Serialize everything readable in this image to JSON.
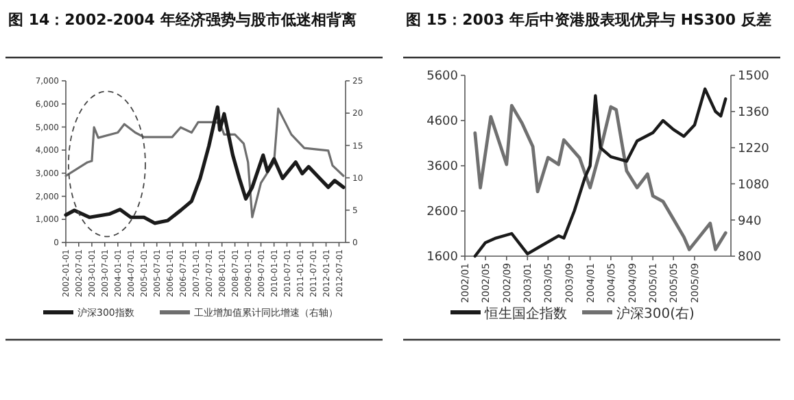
{
  "chart_data": [
    {
      "type": "line",
      "title": "图 14：2002-2004 年经济强势与股市低迷相背离",
      "legend": "bottom",
      "xlim": [
        "2002-01-01",
        "2012-10-01"
      ],
      "xticks": [
        "2002-01-01",
        "2002-07-01",
        "2003-01-01",
        "2003-07-01",
        "2004-01-01",
        "2004-07-01",
        "2005-01-01",
        "2005-07-01",
        "2006-01-01",
        "2006-07-01",
        "2007-01-01",
        "2007-07-01",
        "2008-01-01",
        "2008-07-01",
        "2009-01-01",
        "2009-07-01",
        "2010-01-01",
        "2010-07-01",
        "2011-01-01",
        "2011-07-01",
        "2012-01-01",
        "2012-07-01"
      ],
      "ylim": [
        0,
        7000
      ],
      "yticks": [
        0,
        {
          "value": 1000,
          "label": "1,000"
        },
        {
          "value": 2000,
          "label": "2,000"
        },
        {
          "value": 3000,
          "label": "3,000"
        },
        {
          "value": 4000,
          "label": "4,000"
        },
        {
          "value": 5000,
          "label": "5,000"
        },
        {
          "value": 6000,
          "label": "6,000"
        },
        {
          "value": 7000,
          "label": "7,000"
        }
      ],
      "y2lim": [
        0,
        25
      ],
      "y2ticks": [
        0,
        5,
        10,
        15,
        20,
        25
      ],
      "series": [
        {
          "name": "沪深300指数",
          "color": "#1a1a1a",
          "x": [
            "2002-01",
            "2002-05",
            "2002-12",
            "2003-09",
            "2004-02",
            "2004-07",
            "2005-01",
            "2005-06",
            "2005-12",
            "2006-06",
            "2006-11",
            "2007-03",
            "2007-07",
            "2007-11",
            "2007-12",
            "2008-02",
            "2008-06",
            "2008-09",
            "2008-12",
            "2009-03",
            "2009-08",
            "2009-10",
            "2010-01",
            "2010-05",
            "2010-11",
            "2011-02",
            "2011-05",
            "2012-02",
            "2012-05",
            "2012-09"
          ],
          "values": [
            1190,
            1390,
            1090,
            1230,
            1430,
            1090,
            1090,
            835,
            950,
            1390,
            1790,
            2780,
            4170,
            5860,
            4870,
            5570,
            3780,
            2780,
            1890,
            2390,
            3780,
            3080,
            3620,
            2780,
            3480,
            2980,
            3280,
            2390,
            2680,
            2390
          ]
        },
        {
          "name": "工业增加值累计同比增速（右轴）",
          "color": "#6e6e6e",
          "axis": "y2",
          "x": [
            "2002-01",
            "2002-11",
            "2003-01",
            "2003-02",
            "2003-04",
            "2004-01",
            "2004-04",
            "2004-09",
            "2005-01",
            "2006-02",
            "2006-06",
            "2006-11",
            "2007-02",
            "2007-09",
            "2007-12",
            "2008-02",
            "2008-07",
            "2008-11",
            "2009-01",
            "2009-03",
            "2009-07",
            "2010-01",
            "2010-03",
            "2010-09",
            "2011-03",
            "2012-02",
            "2012-04",
            "2012-09"
          ],
          "values": [
            10.3,
            12.4,
            12.6,
            17.8,
            16.2,
            17.0,
            18.3,
            17.0,
            16.3,
            16.3,
            17.8,
            17.0,
            18.6,
            18.6,
            18.5,
            16.7,
            16.7,
            15.3,
            12.4,
            3.9,
            9.2,
            12.4,
            20.7,
            16.7,
            14.6,
            14.2,
            11.9,
            10.3
          ]
        }
      ]
    },
    {
      "type": "line",
      "title": "图 15：2003 年后中资港股表现优异与 HS300 反差",
      "legend": "bottom",
      "xlim": [
        "2002-01",
        "2006-04"
      ],
      "xticks": [
        {
          "value": "2002-01",
          "label": "2002/01"
        },
        {
          "value": "2002-05",
          "label": "2002/05"
        },
        {
          "value": "2002-09",
          "label": "2002/09"
        },
        {
          "value": "2003-01",
          "label": "2003/01"
        },
        {
          "value": "2003-05",
          "label": "2003/05"
        },
        {
          "value": "2003-09",
          "label": "2003/09"
        },
        {
          "value": "2004-01",
          "label": "2004/01"
        },
        {
          "value": "2004-05",
          "label": "2004/05"
        },
        {
          "value": "2004-09",
          "label": "2004/09"
        },
        {
          "value": "2005-01",
          "label": "2005/01"
        },
        {
          "value": "2005-05",
          "label": "2005/05"
        },
        {
          "value": "2005-09",
          "label": "2005/09"
        }
      ],
      "ylim": [
        1600,
        5600
      ],
      "yticks": [
        1600,
        2600,
        3600,
        4600,
        5600
      ],
      "y2lim": [
        800,
        1500
      ],
      "y2ticks": [
        800,
        940,
        1080,
        1220,
        1360,
        1500
      ],
      "series": [
        {
          "name": "恒生国企指数",
          "color": "#1a1a1a",
          "x": [
            "2002-03",
            "2002-05",
            "2002-07",
            "2002-10",
            "2003-01",
            "2003-04",
            "2003-07",
            "2003-08",
            "2003-10",
            "2003-12",
            "2004-01",
            "2004-02",
            "2004-03",
            "2004-05",
            "2004-08",
            "2004-10",
            "2005-01",
            "2005-03",
            "2005-05",
            "2005-07",
            "2005-09",
            "2005-11",
            "2006-01",
            "2006-02",
            "2006-03"
          ],
          "values": [
            1600,
            1900,
            2000,
            2100,
            1650,
            1850,
            2050,
            2000,
            2600,
            3330,
            3600,
            5150,
            4000,
            3800,
            3700,
            4150,
            4330,
            4600,
            4400,
            4250,
            4500,
            5300,
            4800,
            4700,
            5080
          ]
        },
        {
          "name": "沪深300(右)",
          "color": "#707070",
          "axis": "y2",
          "x": [
            "2002-03",
            "2002-04",
            "2002-06",
            "2002-09",
            "2002-10",
            "2002-12",
            "2003-02",
            "2003-03",
            "2003-05",
            "2003-07",
            "2003-08",
            "2003-11",
            "2004-01",
            "2004-03",
            "2004-05",
            "2004-06",
            "2004-08",
            "2004-10",
            "2004-12",
            "2005-01",
            "2005-03",
            "2005-05",
            "2005-07",
            "2005-08",
            "2005-12",
            "2006-01",
            "2006-03"
          ],
          "values": [
            1277,
            1065,
            1340,
            1155,
            1383,
            1314,
            1224,
            1050,
            1182,
            1155,
            1250,
            1180,
            1065,
            1210,
            1378,
            1367,
            1130,
            1065,
            1118,
            1033,
            1012,
            943,
            874,
            826,
            927,
            826,
            890
          ]
        }
      ]
    }
  ]
}
